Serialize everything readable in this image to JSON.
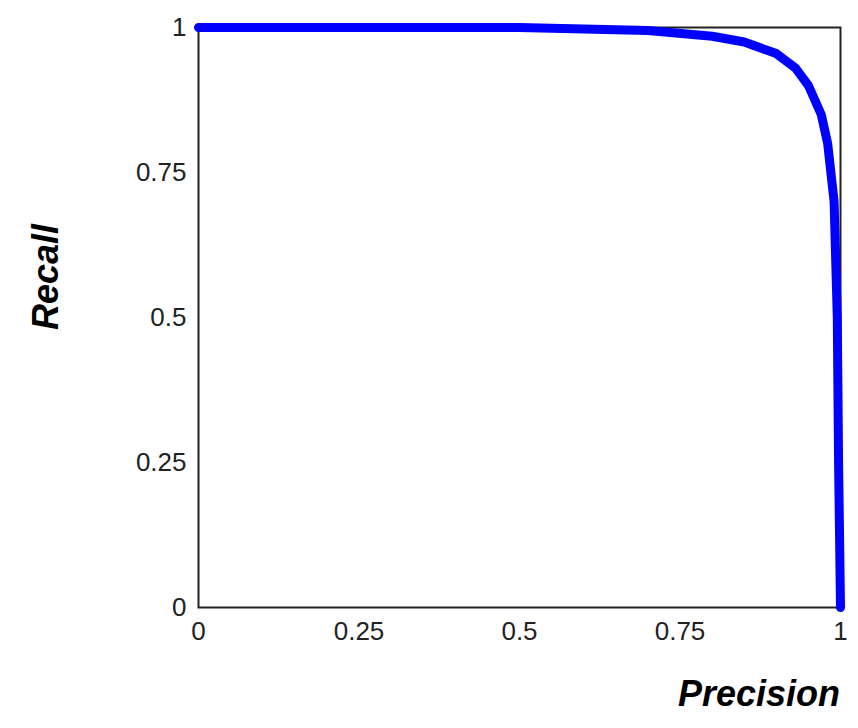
{
  "chart_data": {
    "type": "line",
    "xlabel": "Precision",
    "ylabel": "Recall",
    "x": [
      0,
      0.25,
      0.5,
      0.7,
      0.8,
      0.85,
      0.9,
      0.93,
      0.95,
      0.97,
      0.98,
      0.99,
      0.995,
      0.997,
      1
    ],
    "values": [
      1,
      1,
      1,
      0.995,
      0.985,
      0.975,
      0.955,
      0.93,
      0.9,
      0.85,
      0.8,
      0.7,
      0.5,
      0.25,
      0
    ],
    "color": "#0000ff",
    "xlim": [
      0,
      1
    ],
    "ylim": [
      0,
      1
    ],
    "xticks": [
      0,
      0.25,
      0.5,
      0.75,
      1
    ],
    "yticks": [
      0,
      0.25,
      0.5,
      0.75,
      1
    ],
    "grid": false
  }
}
